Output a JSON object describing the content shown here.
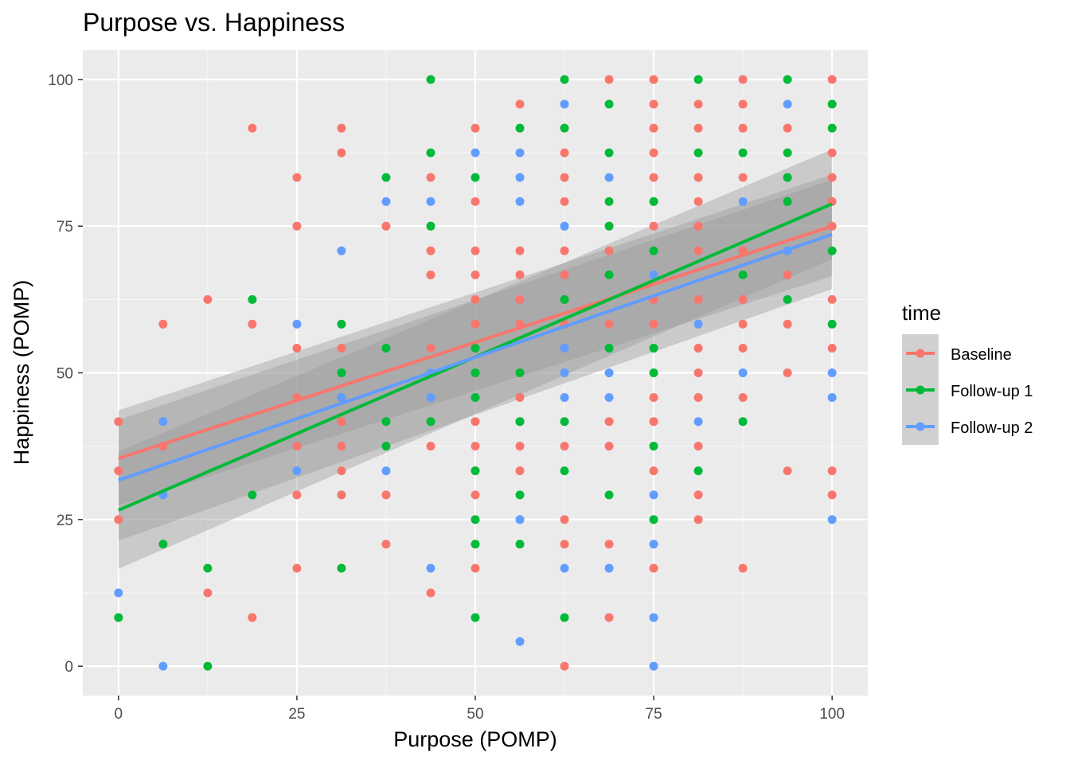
{
  "chart_data": {
    "type": "scatter",
    "title": "Purpose vs. Happiness",
    "xlabel": "Purpose (POMP)",
    "ylabel": "Happiness (POMP)",
    "xlim": [
      -5,
      105
    ],
    "ylim": [
      -5,
      105
    ],
    "x_ticks": [
      "0",
      "25",
      "50",
      "75",
      "100"
    ],
    "y_ticks": [
      "0",
      "25",
      "50",
      "75",
      "100"
    ],
    "grid": true,
    "legend": {
      "title": "time",
      "position": "right"
    },
    "series": [
      {
        "name": "Baseline",
        "color": "#F8766D",
        "points": [
          [
            0,
            41.7
          ],
          [
            0,
            33.3
          ],
          [
            0,
            25
          ],
          [
            6.25,
            58.3
          ],
          [
            6.25,
            37.5
          ],
          [
            12.5,
            62.5
          ],
          [
            12.5,
            12.5
          ],
          [
            18.75,
            91.7
          ],
          [
            18.75,
            58.3
          ],
          [
            18.75,
            8.3
          ],
          [
            25,
            83.3
          ],
          [
            25,
            75
          ],
          [
            25,
            54.2
          ],
          [
            25,
            45.8
          ],
          [
            25,
            37.5
          ],
          [
            25,
            29.2
          ],
          [
            25,
            16.7
          ],
          [
            31.25,
            91.7
          ],
          [
            31.25,
            87.5
          ],
          [
            31.25,
            54.2
          ],
          [
            31.25,
            41.7
          ],
          [
            31.25,
            37.5
          ],
          [
            31.25,
            33.3
          ],
          [
            31.25,
            29.2
          ],
          [
            37.5,
            75
          ],
          [
            37.5,
            29.2
          ],
          [
            37.5,
            20.8
          ],
          [
            43.75,
            83.3
          ],
          [
            43.75,
            70.8
          ],
          [
            43.75,
            66.7
          ],
          [
            43.75,
            54.2
          ],
          [
            43.75,
            37.5
          ],
          [
            43.75,
            12.5
          ],
          [
            50,
            91.7
          ],
          [
            50,
            79.2
          ],
          [
            50,
            70.8
          ],
          [
            50,
            66.7
          ],
          [
            50,
            62.5
          ],
          [
            50,
            58.3
          ],
          [
            50,
            41.7
          ],
          [
            50,
            37.5
          ],
          [
            50,
            33.3
          ],
          [
            50,
            29.2
          ],
          [
            50,
            16.7
          ],
          [
            56.25,
            95.8
          ],
          [
            56.25,
            70.8
          ],
          [
            56.25,
            66.7
          ],
          [
            56.25,
            62.5
          ],
          [
            56.25,
            58.3
          ],
          [
            56.25,
            45.8
          ],
          [
            56.25,
            41.7
          ],
          [
            56.25,
            37.5
          ],
          [
            56.25,
            33.3
          ],
          [
            62.5,
            87.5
          ],
          [
            62.5,
            83.3
          ],
          [
            62.5,
            79.2
          ],
          [
            62.5,
            70.8
          ],
          [
            62.5,
            66.7
          ],
          [
            62.5,
            58.3
          ],
          [
            62.5,
            37.5
          ],
          [
            62.5,
            25
          ],
          [
            62.5,
            20.8
          ],
          [
            62.5,
            0
          ],
          [
            68.75,
            100
          ],
          [
            68.75,
            75
          ],
          [
            68.75,
            70.8
          ],
          [
            68.75,
            58.3
          ],
          [
            68.75,
            41.7
          ],
          [
            68.75,
            37.5
          ],
          [
            68.75,
            20.8
          ],
          [
            68.75,
            8.3
          ],
          [
            75,
            100
          ],
          [
            75,
            95.8
          ],
          [
            75,
            91.7
          ],
          [
            75,
            87.5
          ],
          [
            75,
            83.3
          ],
          [
            75,
            79.2
          ],
          [
            75,
            75
          ],
          [
            75,
            62.5
          ],
          [
            75,
            58.3
          ],
          [
            75,
            45.8
          ],
          [
            75,
            41.7
          ],
          [
            75,
            33.3
          ],
          [
            75,
            16.7
          ],
          [
            81.25,
            95.8
          ],
          [
            81.25,
            91.7
          ],
          [
            81.25,
            83.3
          ],
          [
            81.25,
            79.2
          ],
          [
            81.25,
            75
          ],
          [
            81.25,
            70.8
          ],
          [
            81.25,
            62.5
          ],
          [
            81.25,
            54.2
          ],
          [
            81.25,
            50
          ],
          [
            81.25,
            45.8
          ],
          [
            81.25,
            37.5
          ],
          [
            81.25,
            29.2
          ],
          [
            81.25,
            25
          ],
          [
            87.5,
            100
          ],
          [
            87.5,
            95.8
          ],
          [
            87.5,
            91.7
          ],
          [
            87.5,
            83.3
          ],
          [
            87.5,
            70.8
          ],
          [
            87.5,
            62.5
          ],
          [
            87.5,
            58.3
          ],
          [
            87.5,
            54.2
          ],
          [
            87.5,
            45.8
          ],
          [
            87.5,
            16.7
          ],
          [
            93.75,
            91.7
          ],
          [
            93.75,
            66.7
          ],
          [
            93.75,
            58.3
          ],
          [
            93.75,
            50
          ],
          [
            93.75,
            33.3
          ],
          [
            100,
            100
          ],
          [
            100,
            87.5
          ],
          [
            100,
            83.3
          ],
          [
            100,
            79.2
          ],
          [
            100,
            75
          ],
          [
            100,
            62.5
          ],
          [
            100,
            54.2
          ],
          [
            100,
            33.3
          ],
          [
            100,
            29.2
          ]
        ],
        "fit": {
          "x": [
            0,
            100
          ],
          "y": [
            35.4,
            75.0
          ],
          "ci_low": [
            27.4,
            66.5
          ],
          "ci_high": [
            43.6,
            83.8
          ]
        }
      },
      {
        "name": "Follow-up 1",
        "color": "#00BA38",
        "points": [
          [
            0,
            8.3
          ],
          [
            6.25,
            20.8
          ],
          [
            12.5,
            16.7
          ],
          [
            12.5,
            0
          ],
          [
            18.75,
            62.5
          ],
          [
            18.75,
            29.2
          ],
          [
            31.25,
            58.3
          ],
          [
            31.25,
            50
          ],
          [
            31.25,
            16.7
          ],
          [
            37.5,
            83.3
          ],
          [
            37.5,
            54.2
          ],
          [
            37.5,
            41.7
          ],
          [
            37.5,
            37.5
          ],
          [
            43.75,
            100
          ],
          [
            43.75,
            87.5
          ],
          [
            43.75,
            75
          ],
          [
            43.75,
            41.7
          ],
          [
            50,
            83.3
          ],
          [
            50,
            54.2
          ],
          [
            50,
            50
          ],
          [
            50,
            45.8
          ],
          [
            50,
            33.3
          ],
          [
            50,
            25
          ],
          [
            50,
            20.8
          ],
          [
            50,
            8.3
          ],
          [
            56.25,
            91.7
          ],
          [
            56.25,
            50
          ],
          [
            56.25,
            41.7
          ],
          [
            56.25,
            29.2
          ],
          [
            56.25,
            20.8
          ],
          [
            62.5,
            100
          ],
          [
            62.5,
            91.7
          ],
          [
            62.5,
            62.5
          ],
          [
            62.5,
            41.7
          ],
          [
            62.5,
            33.3
          ],
          [
            62.5,
            8.3
          ],
          [
            68.75,
            95.8
          ],
          [
            68.75,
            87.5
          ],
          [
            68.75,
            79.2
          ],
          [
            68.75,
            75
          ],
          [
            68.75,
            66.7
          ],
          [
            68.75,
            54.2
          ],
          [
            68.75,
            29.2
          ],
          [
            75,
            79.2
          ],
          [
            75,
            70.8
          ],
          [
            75,
            54.2
          ],
          [
            75,
            50
          ],
          [
            75,
            37.5
          ],
          [
            75,
            25
          ],
          [
            81.25,
            100
          ],
          [
            81.25,
            87.5
          ],
          [
            81.25,
            33.3
          ],
          [
            87.5,
            87.5
          ],
          [
            87.5,
            66.7
          ],
          [
            87.5,
            41.7
          ],
          [
            93.75,
            100
          ],
          [
            93.75,
            87.5
          ],
          [
            93.75,
            83.3
          ],
          [
            93.75,
            79.2
          ],
          [
            93.75,
            62.5
          ],
          [
            100,
            95.8
          ],
          [
            100,
            91.7
          ],
          [
            100,
            70.8
          ],
          [
            100,
            58.3
          ]
        ],
        "fit": {
          "x": [
            0,
            100
          ],
          "y": [
            26.6,
            78.8
          ],
          "ci_low": [
            16.6,
            69.4
          ],
          "ci_high": [
            36.6,
            88.1
          ]
        }
      },
      {
        "name": "Follow-up 2",
        "color": "#619CFF",
        "points": [
          [
            0,
            12.5
          ],
          [
            6.25,
            41.7
          ],
          [
            6.25,
            29.2
          ],
          [
            6.25,
            0
          ],
          [
            25,
            58.3
          ],
          [
            25,
            33.3
          ],
          [
            31.25,
            70.8
          ],
          [
            31.25,
            45.8
          ],
          [
            37.5,
            79.2
          ],
          [
            37.5,
            33.3
          ],
          [
            43.75,
            79.2
          ],
          [
            43.75,
            50
          ],
          [
            43.75,
            45.8
          ],
          [
            43.75,
            16.7
          ],
          [
            50,
            87.5
          ],
          [
            56.25,
            87.5
          ],
          [
            56.25,
            83.3
          ],
          [
            56.25,
            79.2
          ],
          [
            56.25,
            25
          ],
          [
            56.25,
            4.2
          ],
          [
            62.5,
            95.8
          ],
          [
            62.5,
            75
          ],
          [
            62.5,
            54.2
          ],
          [
            62.5,
            50
          ],
          [
            62.5,
            45.8
          ],
          [
            62.5,
            16.7
          ],
          [
            68.75,
            83.3
          ],
          [
            68.75,
            50
          ],
          [
            68.75,
            45.8
          ],
          [
            68.75,
            16.7
          ],
          [
            75,
            66.7
          ],
          [
            75,
            29.2
          ],
          [
            75,
            20.8
          ],
          [
            75,
            8.3
          ],
          [
            75,
            0
          ],
          [
            81.25,
            58.3
          ],
          [
            81.25,
            41.7
          ],
          [
            87.5,
            79.2
          ],
          [
            87.5,
            50
          ],
          [
            93.75,
            95.8
          ],
          [
            93.75,
            70.8
          ],
          [
            100,
            50
          ],
          [
            100,
            45.8
          ],
          [
            100,
            25
          ]
        ],
        "fit": {
          "x": [
            0,
            100
          ],
          "y": [
            31.7,
            73.6
          ],
          "ci_low": [
            21.4,
            64.3
          ],
          "ci_high": [
            42.0,
            82.9
          ]
        }
      }
    ]
  }
}
